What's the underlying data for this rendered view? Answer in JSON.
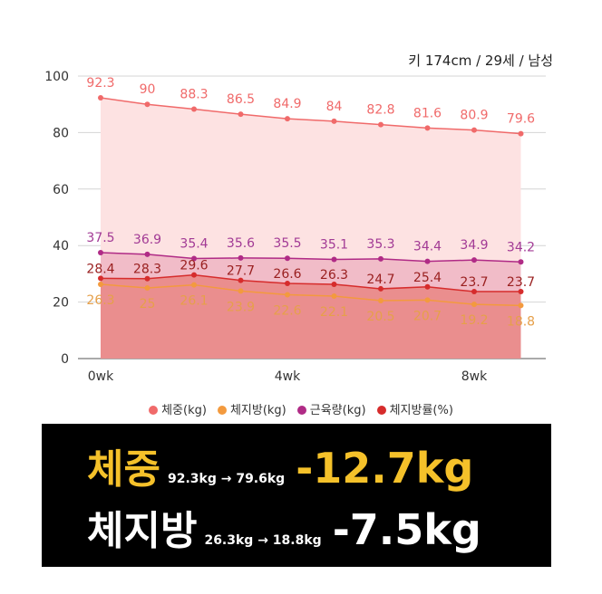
{
  "subtitle": "키 174cm / 29세 / 남성",
  "chart_data": {
    "type": "area",
    "x": [
      0,
      1,
      2,
      3,
      4,
      5,
      6,
      7,
      8,
      9
    ],
    "x_ticks": [
      {
        "x": 0,
        "label": "0wk"
      },
      {
        "x": 4,
        "label": "4wk"
      },
      {
        "x": 8,
        "label": "8wk"
      }
    ],
    "ylim": [
      0,
      100
    ],
    "y_ticks": [
      0,
      20,
      40,
      60,
      80,
      100
    ],
    "grid": true,
    "legend_position": "bottom",
    "series": [
      {
        "name": "체중(kg)",
        "color": "#f06a6a",
        "fill": "#fde2e2",
        "label_color": "#f06a6a",
        "values": [
          92.3,
          90,
          88.3,
          86.5,
          84.9,
          84,
          82.8,
          81.6,
          80.9,
          79.6
        ]
      },
      {
        "name": "근육량(kg)",
        "color": "#b02b86",
        "fill": "#f1bcc8",
        "label_color": "#a23a95",
        "values": [
          37.5,
          36.9,
          35.4,
          35.6,
          35.5,
          35.1,
          35.3,
          34.4,
          34.9,
          34.2
        ]
      },
      {
        "name": "체지방률(%)",
        "color": "#d62c2c",
        "fill": "#ea8e8e",
        "label_color": "#9a2020",
        "values": [
          28.4,
          28.3,
          29.6,
          27.7,
          26.6,
          26.3,
          24.7,
          25.4,
          23.7,
          23.7
        ]
      },
      {
        "name": "체지방(kg)",
        "color": "#f39a3e",
        "fill": "none",
        "label_color": "#e6a04a",
        "values": [
          26.3,
          25,
          26.1,
          23.9,
          22.6,
          22.1,
          20.5,
          20.7,
          19.2,
          18.8
        ]
      }
    ],
    "legend_order": [
      "체중(kg)",
      "체지방(kg)",
      "근육량(kg)",
      "체지방률(%)"
    ],
    "legend_colors": [
      "#f06a6a",
      "#f39a3e",
      "#b02b86",
      "#d62c2c"
    ]
  },
  "summary": {
    "weight": {
      "label": "체중",
      "detail": "92.3kg → 79.6kg",
      "change": "-12.7kg"
    },
    "fat": {
      "label": "체지방",
      "detail": "26.3kg → 18.8kg",
      "change": "-7.5kg"
    }
  }
}
